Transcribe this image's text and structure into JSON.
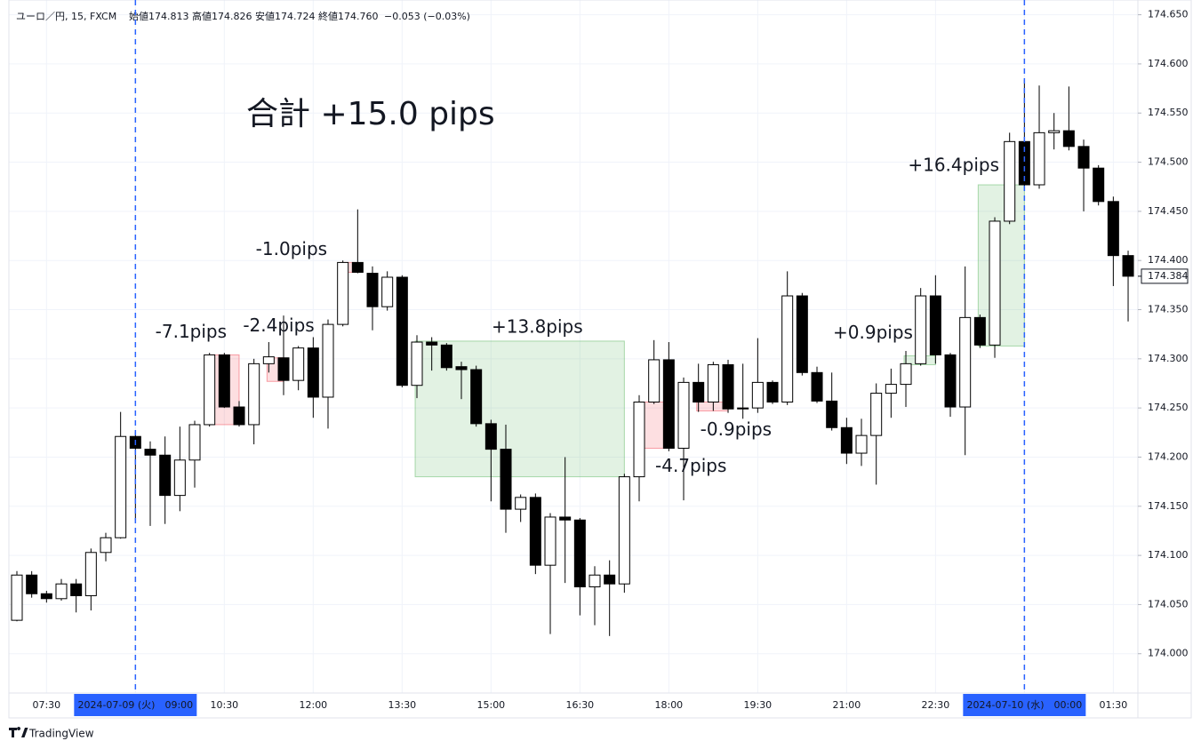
{
  "header": {
    "symbol": "ユーロ／円, 15, FXCM",
    "open": "始値174.813",
    "high": "高値174.826",
    "low": "安値174.724",
    "close": "終値174.760",
    "change": "−0.053 (−0.03%)"
  },
  "brand": "TradingView",
  "chart_data": {
    "type": "candlestick",
    "title": "合計 +15.0 pips",
    "categories": [
      null,
      null,
      "07:30",
      null,
      null,
      null,
      null,
      null,
      "2024-07-09 (火)　09:00",
      null,
      null,
      null,
      null,
      null,
      "10:30",
      null,
      null,
      null,
      null,
      null,
      "12:00",
      null,
      null,
      null,
      null,
      null,
      "13:30",
      null,
      null,
      null,
      null,
      null,
      "15:00",
      null,
      null,
      null,
      null,
      null,
      "16:30",
      null,
      null,
      null,
      null,
      null,
      "18:00",
      null,
      null,
      null,
      null,
      null,
      "19:30",
      null,
      null,
      null,
      null,
      null,
      "21:00",
      null,
      null,
      null,
      null,
      null,
      "22:30",
      null,
      null,
      null,
      null,
      null,
      "2024-07-10 (水)　00:00",
      null,
      null,
      null,
      null,
      null,
      "01:30",
      null
    ],
    "open": [
      174.034,
      174.08,
      174.061,
      174.056,
      174.071,
      174.059,
      174.103,
      174.118,
      174.221,
      174.208,
      174.202,
      174.161,
      174.197,
      174.233,
      174.304,
      174.251,
      174.233,
      174.295,
      174.301,
      174.278,
      174.311,
      174.261,
      174.335,
      174.398,
      174.387,
      174.353,
      174.383,
      174.273,
      174.317,
      174.314,
      174.292,
      174.289,
      174.234,
      174.208,
      174.147,
      174.159,
      174.09,
      174.139,
      174.136,
      174.068,
      174.08,
      174.071,
      174.18,
      174.256,
      174.299,
      174.209,
      174.276,
      174.256,
      174.294,
      174.25,
      174.25,
      174.276,
      174.256,
      174.364,
      174.286,
      174.257,
      174.23,
      174.204,
      174.222,
      174.265,
      174.274,
      174.295,
      174.364,
      174.304,
      174.251,
      174.342,
      174.314,
      174.44,
      174.521,
      174.477,
      174.53,
      174.532,
      174.516,
      174.494,
      174.46,
      174.405
    ],
    "high": [
      174.084,
      174.084,
      174.064,
      174.076,
      174.076,
      174.107,
      174.123,
      174.246,
      174.225,
      174.216,
      174.221,
      174.231,
      174.237,
      174.306,
      174.306,
      174.257,
      174.3,
      174.317,
      174.344,
      174.313,
      174.322,
      174.34,
      174.4,
      174.452,
      174.394,
      174.389,
      174.385,
      174.324,
      174.322,
      174.316,
      174.297,
      174.293,
      174.238,
      174.233,
      174.162,
      174.163,
      174.143,
      174.2,
      174.138,
      174.089,
      174.095,
      174.183,
      174.263,
      174.319,
      174.317,
      174.281,
      174.295,
      174.297,
      174.299,
      174.295,
      174.321,
      174.278,
      174.389,
      174.367,
      174.292,
      174.286,
      174.24,
      174.239,
      174.275,
      174.29,
      174.308,
      174.372,
      174.385,
      174.306,
      174.394,
      174.345,
      174.444,
      174.53,
      174.584,
      174.578,
      174.55,
      174.577,
      174.523,
      174.497,
      174.465,
      174.41
    ],
    "low": [
      174.033,
      174.057,
      174.052,
      174.054,
      174.042,
      174.044,
      174.094,
      174.117,
      174.136,
      174.13,
      174.132,
      174.145,
      174.169,
      174.231,
      174.25,
      174.231,
      174.213,
      174.286,
      174.263,
      174.268,
      174.24,
      174.229,
      174.333,
      174.387,
      174.329,
      174.349,
      174.271,
      174.26,
      174.288,
      174.288,
      174.259,
      174.231,
      174.155,
      174.123,
      174.134,
      174.081,
      174.02,
      174.072,
      174.039,
      174.029,
      174.018,
      174.062,
      174.155,
      174.254,
      174.206,
      174.156,
      174.246,
      174.247,
      174.245,
      174.239,
      174.245,
      174.254,
      174.253,
      174.283,
      174.255,
      174.227,
      174.193,
      174.191,
      174.172,
      174.24,
      174.251,
      174.293,
      174.295,
      174.241,
      174.202,
      174.311,
      174.301,
      174.437,
      174.476,
      174.473,
      174.513,
      174.512,
      174.45,
      174.456,
      174.374,
      174.338
    ],
    "close": [
      174.08,
      174.061,
      174.056,
      174.071,
      174.059,
      174.103,
      174.118,
      174.221,
      174.209,
      174.202,
      174.161,
      174.197,
      174.233,
      174.304,
      174.251,
      174.233,
      174.295,
      174.302,
      174.278,
      174.311,
      174.261,
      174.335,
      174.398,
      174.388,
      174.353,
      174.383,
      174.273,
      174.317,
      174.314,
      174.291,
      174.289,
      174.234,
      174.208,
      174.147,
      174.159,
      174.09,
      174.139,
      174.136,
      174.068,
      174.08,
      174.071,
      174.18,
      174.256,
      174.299,
      174.209,
      174.276,
      174.256,
      174.294,
      174.249,
      174.249,
      174.276,
      174.256,
      174.364,
      174.286,
      174.257,
      174.23,
      174.204,
      174.222,
      174.265,
      174.274,
      174.295,
      174.364,
      174.304,
      174.251,
      174.342,
      174.314,
      174.44,
      174.521,
      174.477,
      174.53,
      174.532,
      174.516,
      174.494,
      174.46,
      174.405,
      174.384
    ],
    "up_color": "#ffffff",
    "down_color": "#000000",
    "edge_color": "#000000",
    "ylim": [
      173.96,
      174.665
    ],
    "yticks": [
      {
        "value": 174.0,
        "label": "174.000"
      },
      {
        "value": 174.05,
        "label": "174.050"
      },
      {
        "value": 174.1,
        "label": "174.100"
      },
      {
        "value": 174.15,
        "label": "174.150"
      },
      {
        "value": 174.2,
        "label": "174.200"
      },
      {
        "value": 174.25,
        "label": "174.250"
      },
      {
        "value": 174.3,
        "label": "174.300"
      },
      {
        "value": 174.35,
        "label": "174.350"
      },
      {
        "value": 174.4,
        "label": "174.400"
      },
      {
        "value": 174.45,
        "label": "174.450"
      },
      {
        "value": 174.5,
        "label": "174.500"
      },
      {
        "value": 174.55,
        "label": "174.550"
      },
      {
        "value": 174.6,
        "label": "174.600"
      },
      {
        "value": 174.65,
        "label": "174.650"
      }
    ],
    "grid": true,
    "trades": [
      {
        "label": "-7.1pips",
        "start": 13,
        "end": 15,
        "top": 174.304,
        "bottom": 174.233,
        "color": "#f23645"
      },
      {
        "label": "-2.4pips",
        "start": 17,
        "end": 18,
        "top": 174.301,
        "bottom": 174.277,
        "color": "#f23645"
      },
      {
        "label": "-1.0pips",
        "start": 22,
        "end": 23,
        "top": 174.398,
        "bottom": 174.388,
        "color": "#f23645"
      },
      {
        "label": "+13.8pips",
        "start": 27,
        "end": 41,
        "top": 174.318,
        "bottom": 174.18,
        "color": "#4caf50"
      },
      {
        "label": "-4.7pips",
        "start": 42,
        "end": 44,
        "top": 174.256,
        "bottom": 174.209,
        "color": "#f23645"
      },
      {
        "label": "-0.9pips",
        "start": 46,
        "end": 48,
        "top": 174.256,
        "bottom": 174.247,
        "color": "#f23645"
      },
      {
        "label": "+0.9pips",
        "start": 60,
        "end": 62,
        "top": 174.303,
        "bottom": 174.294,
        "color": "#4caf50"
      },
      {
        "label": "+16.4pips",
        "start": 65,
        "end": 68,
        "top": 174.477,
        "bottom": 174.313,
        "color": "#4caf50"
      }
    ],
    "loss_label_color": "#f23645",
    "gain_label_color": "#1eb4c8",
    "title_color": "#1eb4c8"
  }
}
